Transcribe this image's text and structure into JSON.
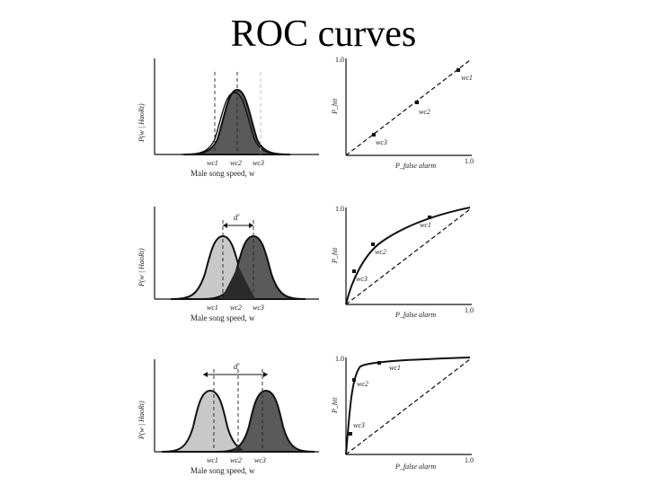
{
  "slide": {
    "title": "ROC curves"
  },
  "rows": [
    {
      "distribution": {
        "ylabel": "P(w | HaoRt)",
        "xlabel": "Male song speed, w",
        "d_label": "",
        "criteria": [
          "w_c1",
          "w_c2",
          "w_c3"
        ],
        "criteria_text": [
          "wc1",
          "wc2",
          "wc3"
        ]
      },
      "roc": {
        "ylabel": "P_hit",
        "xlabel": "P_false alarm",
        "y_tick": "1.0",
        "x_tick": "1.0",
        "point_labels": [
          "wc3",
          "wc2",
          "wc1"
        ]
      }
    },
    {
      "distribution": {
        "ylabel": "P(w | HaoRt)",
        "xlabel": "Male song speed, w",
        "d_label": "d'",
        "criteria_text": [
          "wc1",
          "wc2",
          "wc3"
        ]
      },
      "roc": {
        "ylabel": "P_hit",
        "xlabel": "P_false alarm",
        "y_tick": "1.0",
        "x_tick": "1.0",
        "point_labels": [
          "wc3",
          "wc2",
          "wc1"
        ]
      }
    },
    {
      "distribution": {
        "ylabel": "P(w | HaoRt)",
        "xlabel": "Male song speed, w",
        "d_label": "d'",
        "criteria_text": [
          "wc1",
          "wc2",
          "wc3"
        ]
      },
      "roc": {
        "ylabel": "P_hit",
        "xlabel": "P_false alarm",
        "y_tick": "1.0",
        "x_tick": "1.0",
        "point_labels": [
          "wc3",
          "wc2",
          "wc1"
        ]
      }
    }
  ],
  "colors": {
    "background": "#ffffff",
    "noise_fill": "#c8c8c8",
    "signal_fill": "#5a5a5a",
    "overlap_fill": "#2a2a2a",
    "line": "#111111"
  }
}
